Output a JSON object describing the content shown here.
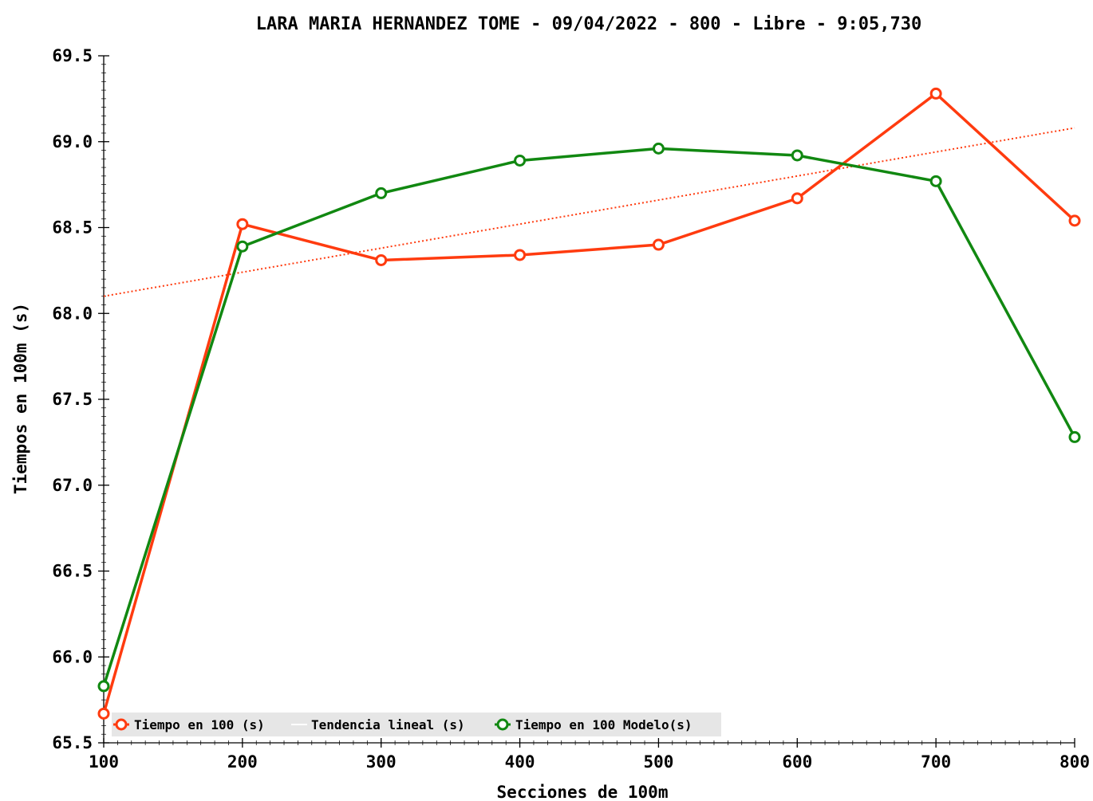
{
  "chart_data": {
    "type": "line",
    "title": "LARA MARIA HERNANDEZ TOME - 09/04/2022 - 800 - Libre - 9:05,730",
    "xlabel": "Secciones de 100m",
    "ylabel": "Tiempos en 100m (s)",
    "x": [
      100,
      200,
      300,
      400,
      500,
      600,
      700,
      800
    ],
    "xlim": [
      100,
      800
    ],
    "ylim": [
      65.5,
      69.5
    ],
    "x_ticks": [
      "100",
      "200",
      "300",
      "400",
      "500",
      "600",
      "700",
      "800"
    ],
    "y_ticks": [
      "65.5",
      "66.0",
      "66.5",
      "67.0",
      "67.5",
      "68.0",
      "68.5",
      "69.0",
      "69.5"
    ],
    "grid": false,
    "legend_position": "bottom-left",
    "series": [
      {
        "name": "Tiempo en 100 (s)",
        "color": "#ff3b0f",
        "style": "line-markers",
        "values": [
          65.67,
          68.52,
          68.31,
          68.34,
          68.4,
          68.67,
          69.28,
          68.54
        ]
      },
      {
        "name": "Tendencia lineal (s)",
        "color": "#ff3b0f",
        "style": "dotted-trend",
        "values": [
          68.1,
          68.24,
          68.38,
          68.52,
          68.66,
          68.8,
          68.94,
          69.08
        ]
      },
      {
        "name": "Tiempo en 100 Modelo(s)",
        "color": "#118811",
        "style": "line-markers",
        "values": [
          65.83,
          68.39,
          68.7,
          68.89,
          68.96,
          68.92,
          68.77,
          67.28
        ]
      }
    ]
  }
}
